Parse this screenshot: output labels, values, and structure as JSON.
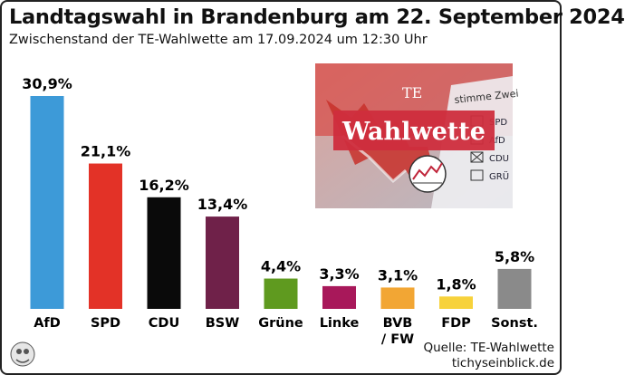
{
  "title": "Landtagswahl in Brandenburg am 22. September 2024",
  "subtitle": "Zwischenstand der TE-Wahlwette am 17.09.2024 um 12:30 Uhr",
  "source_line1": "Quelle: TE-Wahlwette",
  "source_line2": "tichyseinblick.de",
  "promo": {
    "brand": "Wahlwette",
    "logo_text": "TE",
    "ballot_header": "stimme Zwei",
    "ballot_entries": [
      "SPD",
      "AfD",
      "CDU",
      "GRÜ"
    ]
  },
  "chart_data": {
    "type": "bar",
    "categories": [
      "AfD",
      "SPD",
      "CDU",
      "BSW",
      "Grüne",
      "Linke",
      "BVB / FW",
      "FDP",
      "Sonst."
    ],
    "values": [
      30.9,
      21.1,
      16.2,
      13.4,
      4.4,
      3.3,
      3.1,
      1.8,
      5.8
    ],
    "value_labels": [
      "30,9%",
      "21,1%",
      "16,2%",
      "13,4%",
      "4,4%",
      "3,3%",
      "3,1%",
      "1,8%",
      "5,8%"
    ],
    "colors": [
      "#3d9ad8",
      "#e33227",
      "#0a0a0a",
      "#6f2149",
      "#5f9a1f",
      "#a8185a",
      "#f2a634",
      "#f7d23b",
      "#8a8a8a"
    ],
    "ylim": [
      0,
      30.9
    ],
    "grid": false,
    "legend": false
  }
}
